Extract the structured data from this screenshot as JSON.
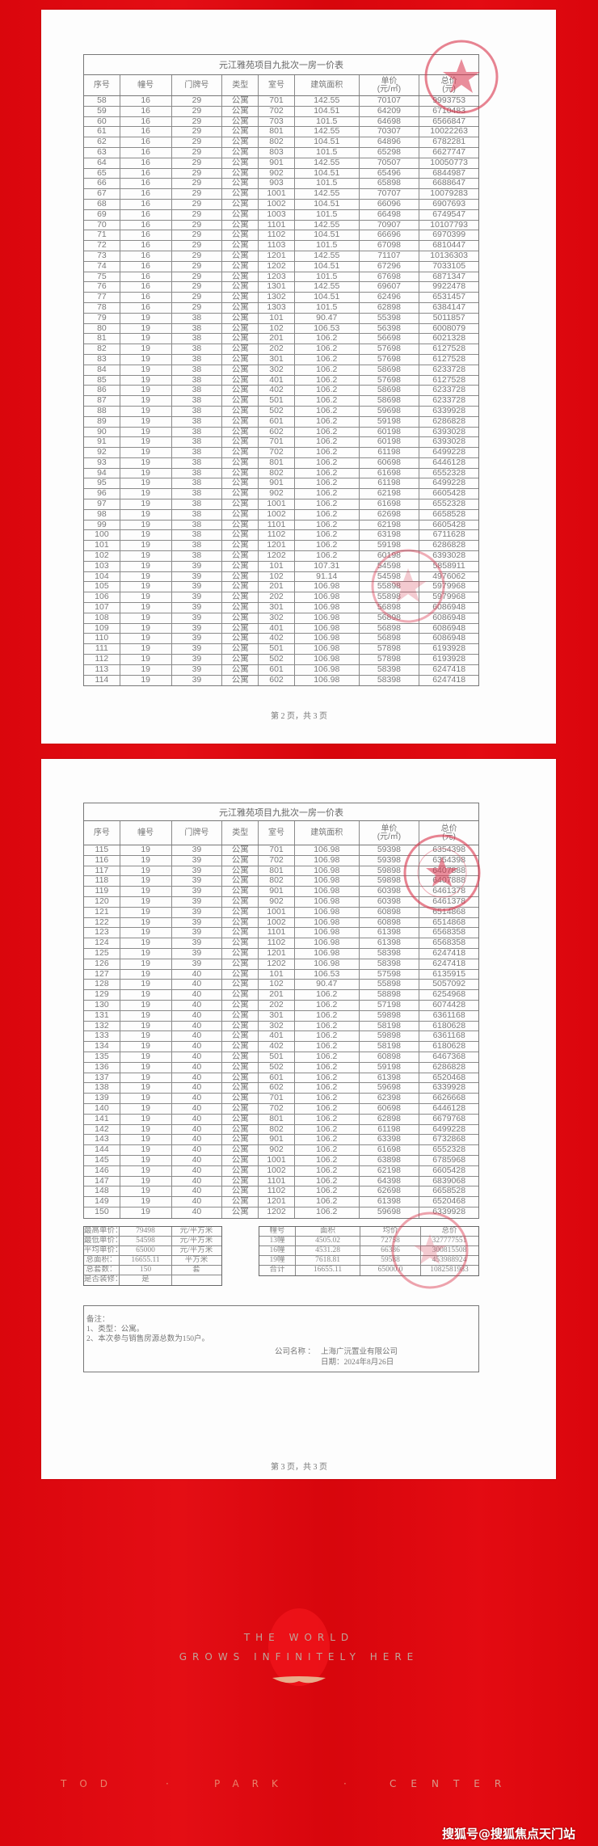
{
  "table_title": "元江雅苑项目九批次一房一价表",
  "headers": [
    [
      "序号"
    ],
    [
      "幢号"
    ],
    [
      "门牌号"
    ],
    [
      "类型"
    ],
    [
      "室号"
    ],
    [
      "建筑面积"
    ],
    [
      "单价",
      "(元/㎡)"
    ],
    [
      "总价",
      "(元)"
    ]
  ],
  "page2": {
    "footer": "第 2 页，共 3 页",
    "rows": [
      [
        "58",
        "16",
        "29",
        "公寓",
        "701",
        "142.55",
        "70107",
        "9993753"
      ],
      [
        "59",
        "16",
        "29",
        "公寓",
        "702",
        "104.51",
        "64209",
        "6710483"
      ],
      [
        "60",
        "16",
        "29",
        "公寓",
        "703",
        "101.5",
        "64698",
        "6566847"
      ],
      [
        "61",
        "16",
        "29",
        "公寓",
        "801",
        "142.55",
        "70307",
        "10022263"
      ],
      [
        "62",
        "16",
        "29",
        "公寓",
        "802",
        "104.51",
        "64896",
        "6782281"
      ],
      [
        "63",
        "16",
        "29",
        "公寓",
        "803",
        "101.5",
        "65298",
        "6627747"
      ],
      [
        "64",
        "16",
        "29",
        "公寓",
        "901",
        "142.55",
        "70507",
        "10050773"
      ],
      [
        "65",
        "16",
        "29",
        "公寓",
        "902",
        "104.51",
        "65496",
        "6844987"
      ],
      [
        "66",
        "16",
        "29",
        "公寓",
        "903",
        "101.5",
        "65898",
        "6688647"
      ],
      [
        "67",
        "16",
        "29",
        "公寓",
        "1001",
        "142.55",
        "70707",
        "10079283"
      ],
      [
        "68",
        "16",
        "29",
        "公寓",
        "1002",
        "104.51",
        "66096",
        "6907693"
      ],
      [
        "69",
        "16",
        "29",
        "公寓",
        "1003",
        "101.5",
        "66498",
        "6749547"
      ],
      [
        "70",
        "16",
        "29",
        "公寓",
        "1101",
        "142.55",
        "70907",
        "10107793"
      ],
      [
        "71",
        "16",
        "29",
        "公寓",
        "1102",
        "104.51",
        "66696",
        "6970399"
      ],
      [
        "72",
        "16",
        "29",
        "公寓",
        "1103",
        "101.5",
        "67098",
        "6810447"
      ],
      [
        "73",
        "16",
        "29",
        "公寓",
        "1201",
        "142.55",
        "71107",
        "10136303"
      ],
      [
        "74",
        "16",
        "29",
        "公寓",
        "1202",
        "104.51",
        "67296",
        "7033105"
      ],
      [
        "75",
        "16",
        "29",
        "公寓",
        "1203",
        "101.5",
        "67698",
        "6871347"
      ],
      [
        "76",
        "16",
        "29",
        "公寓",
        "1301",
        "142.55",
        "69607",
        "9922478"
      ],
      [
        "77",
        "16",
        "29",
        "公寓",
        "1302",
        "104.51",
        "62496",
        "6531457"
      ],
      [
        "78",
        "16",
        "29",
        "公寓",
        "1303",
        "101.5",
        "62898",
        "6384147"
      ],
      [
        "79",
        "19",
        "38",
        "公寓",
        "101",
        "90.47",
        "55398",
        "5011857"
      ],
      [
        "80",
        "19",
        "38",
        "公寓",
        "102",
        "106.53",
        "56398",
        "6008079"
      ],
      [
        "81",
        "19",
        "38",
        "公寓",
        "201",
        "106.2",
        "56698",
        "6021328"
      ],
      [
        "82",
        "19",
        "38",
        "公寓",
        "202",
        "106.2",
        "57698",
        "6127528"
      ],
      [
        "83",
        "19",
        "38",
        "公寓",
        "301",
        "106.2",
        "57698",
        "6127528"
      ],
      [
        "84",
        "19",
        "38",
        "公寓",
        "302",
        "106.2",
        "58698",
        "6233728"
      ],
      [
        "85",
        "19",
        "38",
        "公寓",
        "401",
        "106.2",
        "57698",
        "6127528"
      ],
      [
        "86",
        "19",
        "38",
        "公寓",
        "402",
        "106.2",
        "58698",
        "6233728"
      ],
      [
        "87",
        "19",
        "38",
        "公寓",
        "501",
        "106.2",
        "58698",
        "6233728"
      ],
      [
        "88",
        "19",
        "38",
        "公寓",
        "502",
        "106.2",
        "59698",
        "6339928"
      ],
      [
        "89",
        "19",
        "38",
        "公寓",
        "601",
        "106.2",
        "59198",
        "6286828"
      ],
      [
        "90",
        "19",
        "38",
        "公寓",
        "602",
        "106.2",
        "60198",
        "6393028"
      ],
      [
        "91",
        "19",
        "38",
        "公寓",
        "701",
        "106.2",
        "60198",
        "6393028"
      ],
      [
        "92",
        "19",
        "38",
        "公寓",
        "702",
        "106.2",
        "61198",
        "6499228"
      ],
      [
        "93",
        "19",
        "38",
        "公寓",
        "801",
        "106.2",
        "60698",
        "6446128"
      ],
      [
        "94",
        "19",
        "38",
        "公寓",
        "802",
        "106.2",
        "61698",
        "6552328"
      ],
      [
        "95",
        "19",
        "38",
        "公寓",
        "901",
        "106.2",
        "61198",
        "6499228"
      ],
      [
        "96",
        "19",
        "38",
        "公寓",
        "902",
        "106.2",
        "62198",
        "6605428"
      ],
      [
        "97",
        "19",
        "38",
        "公寓",
        "1001",
        "106.2",
        "61698",
        "6552328"
      ],
      [
        "98",
        "19",
        "38",
        "公寓",
        "1002",
        "106.2",
        "62698",
        "6658528"
      ],
      [
        "99",
        "19",
        "38",
        "公寓",
        "1101",
        "106.2",
        "62198",
        "6605428"
      ],
      [
        "100",
        "19",
        "38",
        "公寓",
        "1102",
        "106.2",
        "63198",
        "6711628"
      ],
      [
        "101",
        "19",
        "38",
        "公寓",
        "1201",
        "106.2",
        "59198",
        "6286828"
      ],
      [
        "102",
        "19",
        "38",
        "公寓",
        "1202",
        "106.2",
        "60198",
        "6393028"
      ],
      [
        "103",
        "19",
        "39",
        "公寓",
        "101",
        "107.31",
        "54598",
        "5858911"
      ],
      [
        "104",
        "19",
        "39",
        "公寓",
        "102",
        "91.14",
        "54598",
        "4976062"
      ],
      [
        "105",
        "19",
        "39",
        "公寓",
        "201",
        "106.98",
        "55898",
        "5979968"
      ],
      [
        "106",
        "19",
        "39",
        "公寓",
        "202",
        "106.98",
        "55898",
        "5979968"
      ],
      [
        "107",
        "19",
        "39",
        "公寓",
        "301",
        "106.98",
        "56898",
        "6086948"
      ],
      [
        "108",
        "19",
        "39",
        "公寓",
        "302",
        "106.98",
        "56898",
        "6086948"
      ],
      [
        "109",
        "19",
        "39",
        "公寓",
        "401",
        "106.98",
        "56898",
        "6086948"
      ],
      [
        "110",
        "19",
        "39",
        "公寓",
        "402",
        "106.98",
        "56898",
        "6086948"
      ],
      [
        "111",
        "19",
        "39",
        "公寓",
        "501",
        "106.98",
        "57898",
        "6193928"
      ],
      [
        "112",
        "19",
        "39",
        "公寓",
        "502",
        "106.98",
        "57898",
        "6193928"
      ],
      [
        "113",
        "19",
        "39",
        "公寓",
        "601",
        "106.98",
        "58398",
        "6247418"
      ],
      [
        "114",
        "19",
        "39",
        "公寓",
        "602",
        "106.98",
        "58398",
        "6247418"
      ]
    ]
  },
  "page3": {
    "footer": "第 3 页，共 3 页",
    "rows": [
      [
        "115",
        "19",
        "39",
        "公寓",
        "701",
        "106.98",
        "59398",
        "6354398"
      ],
      [
        "116",
        "19",
        "39",
        "公寓",
        "702",
        "106.98",
        "59398",
        "6354398"
      ],
      [
        "117",
        "19",
        "39",
        "公寓",
        "801",
        "106.98",
        "59898",
        "6407888"
      ],
      [
        "118",
        "19",
        "39",
        "公寓",
        "802",
        "106.98",
        "59898",
        "6407888"
      ],
      [
        "119",
        "19",
        "39",
        "公寓",
        "901",
        "106.98",
        "60398",
        "6461378"
      ],
      [
        "120",
        "19",
        "39",
        "公寓",
        "902",
        "106.98",
        "60398",
        "6461378"
      ],
      [
        "121",
        "19",
        "39",
        "公寓",
        "1001",
        "106.98",
        "60898",
        "6514868"
      ],
      [
        "122",
        "19",
        "39",
        "公寓",
        "1002",
        "106.98",
        "60898",
        "6514868"
      ],
      [
        "123",
        "19",
        "39",
        "公寓",
        "1101",
        "106.98",
        "61398",
        "6568358"
      ],
      [
        "124",
        "19",
        "39",
        "公寓",
        "1102",
        "106.98",
        "61398",
        "6568358"
      ],
      [
        "125",
        "19",
        "39",
        "公寓",
        "1201",
        "106.98",
        "58398",
        "6247418"
      ],
      [
        "126",
        "19",
        "39",
        "公寓",
        "1202",
        "106.98",
        "58398",
        "6247418"
      ],
      [
        "127",
        "19",
        "40",
        "公寓",
        "101",
        "106.53",
        "57598",
        "6135915"
      ],
      [
        "128",
        "19",
        "40",
        "公寓",
        "102",
        "90.47",
        "55898",
        "5057092"
      ],
      [
        "129",
        "19",
        "40",
        "公寓",
        "201",
        "106.2",
        "58898",
        "6254968"
      ],
      [
        "130",
        "19",
        "40",
        "公寓",
        "202",
        "106.2",
        "57198",
        "6074428"
      ],
      [
        "131",
        "19",
        "40",
        "公寓",
        "301",
        "106.2",
        "59898",
        "6361168"
      ],
      [
        "132",
        "19",
        "40",
        "公寓",
        "302",
        "106.2",
        "58198",
        "6180628"
      ],
      [
        "133",
        "19",
        "40",
        "公寓",
        "401",
        "106.2",
        "59898",
        "6361168"
      ],
      [
        "134",
        "19",
        "40",
        "公寓",
        "402",
        "106.2",
        "58198",
        "6180628"
      ],
      [
        "135",
        "19",
        "40",
        "公寓",
        "501",
        "106.2",
        "60898",
        "6467368"
      ],
      [
        "136",
        "19",
        "40",
        "公寓",
        "502",
        "106.2",
        "59198",
        "6286828"
      ],
      [
        "137",
        "19",
        "40",
        "公寓",
        "601",
        "106.2",
        "61398",
        "6520468"
      ],
      [
        "138",
        "19",
        "40",
        "公寓",
        "602",
        "106.2",
        "59698",
        "6339928"
      ],
      [
        "139",
        "19",
        "40",
        "公寓",
        "701",
        "106.2",
        "62398",
        "6626668"
      ],
      [
        "140",
        "19",
        "40",
        "公寓",
        "702",
        "106.2",
        "60698",
        "6446128"
      ],
      [
        "141",
        "19",
        "40",
        "公寓",
        "801",
        "106.2",
        "62898",
        "6679768"
      ],
      [
        "142",
        "19",
        "40",
        "公寓",
        "802",
        "106.2",
        "61198",
        "6499228"
      ],
      [
        "143",
        "19",
        "40",
        "公寓",
        "901",
        "106.2",
        "63398",
        "6732868"
      ],
      [
        "144",
        "19",
        "40",
        "公寓",
        "902",
        "106.2",
        "61698",
        "6552328"
      ],
      [
        "145",
        "19",
        "40",
        "公寓",
        "1001",
        "106.2",
        "63898",
        "6785968"
      ],
      [
        "146",
        "19",
        "40",
        "公寓",
        "1002",
        "106.2",
        "62198",
        "6605428"
      ],
      [
        "147",
        "19",
        "40",
        "公寓",
        "1101",
        "106.2",
        "64398",
        "6839068"
      ],
      [
        "148",
        "19",
        "40",
        "公寓",
        "1102",
        "106.2",
        "62698",
        "6658528"
      ],
      [
        "149",
        "19",
        "40",
        "公寓",
        "1201",
        "106.2",
        "61398",
        "6520468"
      ],
      [
        "150",
        "19",
        "40",
        "公寓",
        "1202",
        "106.2",
        "59698",
        "6339928"
      ]
    ],
    "summary_left": [
      [
        "最高单价：",
        "79498",
        "元/平方米"
      ],
      [
        "最低单价：",
        "54598",
        "元/平方米"
      ],
      [
        "平均单价：",
        "65000",
        "元/平方米"
      ],
      [
        "总面积：",
        "16655.11",
        "平方米"
      ],
      [
        "总套数：",
        "150",
        "套"
      ],
      [
        "是否装修：",
        "是",
        ""
      ]
    ],
    "summary_right": [
      [
        "幢号",
        "面积",
        "均价",
        "总价"
      ],
      [
        "13幢",
        "4505.02",
        "72758",
        "327777551"
      ],
      [
        "16幢",
        "4531.28",
        "66386",
        "300815508"
      ],
      [
        "19幢",
        "7618.81",
        "59588",
        "453988924"
      ],
      [
        "合计",
        "16655.11",
        "65000.0",
        "1082581983"
      ]
    ],
    "notes": {
      "heading": "备注：",
      "line1": "1、类型：公寓。",
      "line2": "2、本次参与销售房源总数为150户。",
      "company_label": "公司名称 ：",
      "company": "上海广沅置业有限公司",
      "date": "日期：2024年8月26日"
    }
  },
  "poster": {
    "line1": "THE WORLD",
    "line2": "GROWS INFINITELY HERE",
    "brand": [
      "TOD",
      "·",
      "PARK",
      "·",
      "CENTER"
    ],
    "watermark": "搜狐号@搜狐焦点天门站"
  },
  "colors": {
    "background": "#e3060d",
    "stamp": "#d9324a",
    "paper": "#fdfdfd"
  }
}
